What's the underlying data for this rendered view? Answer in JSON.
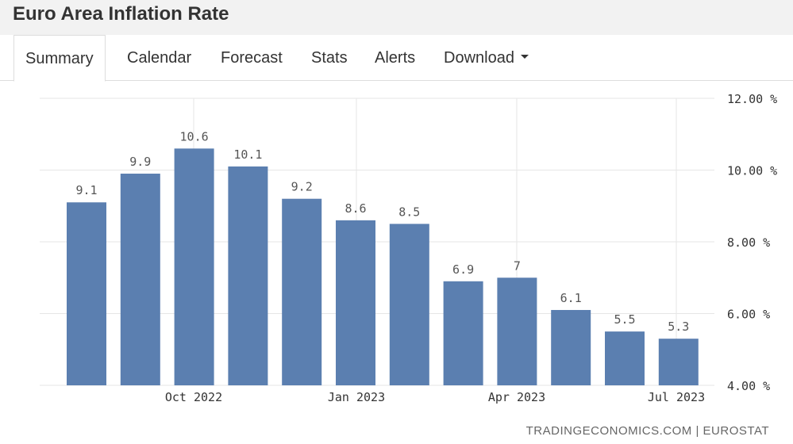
{
  "header": {
    "title": "Euro Area Inflation Rate"
  },
  "tabs": [
    {
      "label": "Summary",
      "active": true
    },
    {
      "label": "Calendar"
    },
    {
      "label": "Forecast"
    },
    {
      "label": "Stats"
    },
    {
      "label": "Alerts"
    },
    {
      "label": "Download",
      "icon": "caret-down-icon"
    }
  ],
  "chart_data": {
    "type": "bar",
    "values": [
      9.1,
      9.9,
      10.6,
      10.1,
      9.2,
      8.6,
      8.5,
      6.9,
      7,
      6.1,
      5.5,
      5.3
    ],
    "data_labels": [
      "9.1",
      "9.9",
      "10.6",
      "10.1",
      "9.2",
      "8.6",
      "8.5",
      "6.9",
      "7",
      "6.1",
      "5.5",
      "5.3"
    ],
    "x_tick_labels": [
      "Oct 2022",
      "Jan 2023",
      "Apr 2023",
      "Jul 2023"
    ],
    "y_tick_labels": [
      "12.00 %",
      "10.00 %",
      "8.00 %",
      "6.00 %",
      "4.00 %"
    ],
    "y_ticks": [
      12,
      10,
      8,
      6,
      4
    ],
    "ylim": [
      4,
      12
    ],
    "grid": true,
    "bar_color": "#5b7fb0",
    "grid_color": "#e6e6e6",
    "label_color": "#555555"
  },
  "footer": {
    "source_left": "TRADINGECONOMICS.COM",
    "separator": "|",
    "source_right": "EUROSTAT"
  }
}
